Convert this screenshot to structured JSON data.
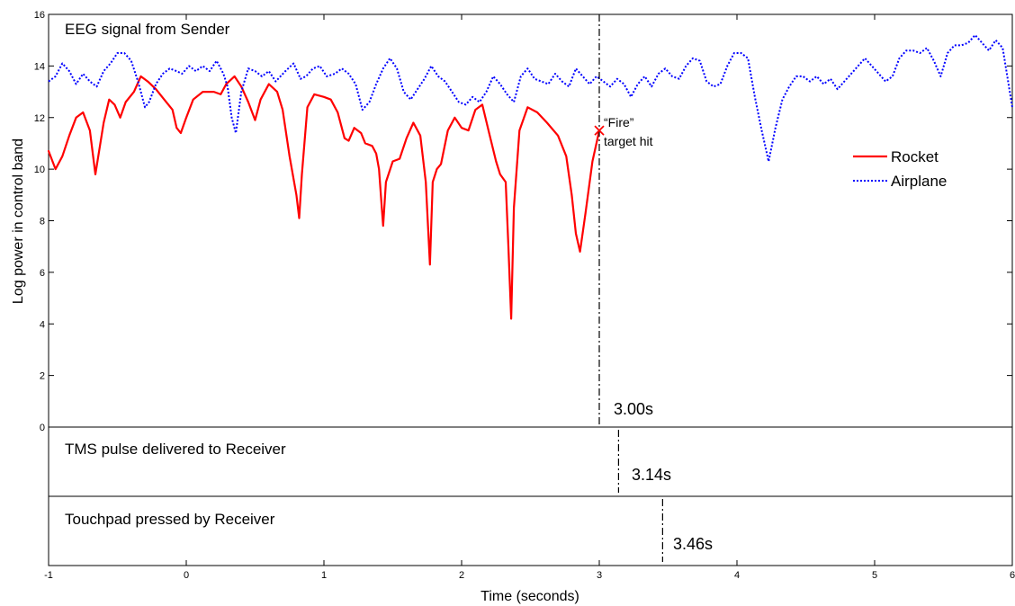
{
  "colors": {
    "rocket": "#ff0000",
    "airplane": "#0000ff",
    "axis": "#000000",
    "background": "#ffffff"
  },
  "chart_data": [
    {
      "type": "line",
      "panel": "eeg",
      "panel_label": "EEG signal from Sender",
      "ylabel": "Log power in control band",
      "xlabel": "Time (seconds)",
      "xlim": [
        -1,
        6
      ],
      "ylim": [
        0,
        16
      ],
      "yticks": [
        "0",
        "2",
        "4",
        "6",
        "8",
        "10",
        "12",
        "14",
        "16"
      ],
      "xticks": [
        "-1",
        "0",
        "1",
        "2",
        "3",
        "4",
        "5",
        "6"
      ],
      "legend_position": "right",
      "grid": false,
      "series": [
        {
          "name": "Rocket",
          "color": "#ff0000",
          "style": "solid",
          "points": [
            [
              -1.0,
              10.7
            ],
            [
              -0.95,
              10.0
            ],
            [
              -0.9,
              10.5
            ],
            [
              -0.85,
              11.3
            ],
            [
              -0.8,
              12.0
            ],
            [
              -0.75,
              12.2
            ],
            [
              -0.7,
              11.5
            ],
            [
              -0.66,
              9.8
            ],
            [
              -0.6,
              11.8
            ],
            [
              -0.56,
              12.7
            ],
            [
              -0.52,
              12.5
            ],
            [
              -0.48,
              12.0
            ],
            [
              -0.44,
              12.6
            ],
            [
              -0.38,
              13.0
            ],
            [
              -0.33,
              13.6
            ],
            [
              -0.28,
              13.4
            ],
            [
              -0.22,
              13.1
            ],
            [
              -0.16,
              12.7
            ],
            [
              -0.1,
              12.3
            ],
            [
              -0.07,
              11.6
            ],
            [
              -0.04,
              11.4
            ],
            [
              0.0,
              12.0
            ],
            [
              0.05,
              12.7
            ],
            [
              0.12,
              13.0
            ],
            [
              0.2,
              13.0
            ],
            [
              0.25,
              12.9
            ],
            [
              0.29,
              13.3
            ],
            [
              0.35,
              13.6
            ],
            [
              0.4,
              13.2
            ],
            [
              0.45,
              12.6
            ],
            [
              0.5,
              11.9
            ],
            [
              0.54,
              12.7
            ],
            [
              0.6,
              13.3
            ],
            [
              0.66,
              13.0
            ],
            [
              0.7,
              12.3
            ],
            [
              0.75,
              10.5
            ],
            [
              0.8,
              9.0
            ],
            [
              0.82,
              8.1
            ],
            [
              0.84,
              9.8
            ],
            [
              0.88,
              12.4
            ],
            [
              0.93,
              12.9
            ],
            [
              1.0,
              12.8
            ],
            [
              1.05,
              12.7
            ],
            [
              1.1,
              12.2
            ],
            [
              1.15,
              11.2
            ],
            [
              1.18,
              11.1
            ],
            [
              1.22,
              11.6
            ],
            [
              1.27,
              11.4
            ],
            [
              1.3,
              11.0
            ],
            [
              1.35,
              10.9
            ],
            [
              1.38,
              10.6
            ],
            [
              1.4,
              10.0
            ],
            [
              1.42,
              8.5
            ],
            [
              1.43,
              7.8
            ],
            [
              1.45,
              9.5
            ],
            [
              1.5,
              10.3
            ],
            [
              1.55,
              10.4
            ],
            [
              1.6,
              11.2
            ],
            [
              1.65,
              11.8
            ],
            [
              1.7,
              11.3
            ],
            [
              1.74,
              9.5
            ],
            [
              1.77,
              6.3
            ],
            [
              1.79,
              9.5
            ],
            [
              1.82,
              10.0
            ],
            [
              1.85,
              10.2
            ],
            [
              1.9,
              11.5
            ],
            [
              1.95,
              12.0
            ],
            [
              2.0,
              11.6
            ],
            [
              2.05,
              11.5
            ],
            [
              2.1,
              12.3
            ],
            [
              2.15,
              12.5
            ],
            [
              2.2,
              11.4
            ],
            [
              2.25,
              10.3
            ],
            [
              2.28,
              9.8
            ],
            [
              2.32,
              9.5
            ],
            [
              2.34,
              7.0
            ],
            [
              2.36,
              4.2
            ],
            [
              2.38,
              8.5
            ],
            [
              2.42,
              11.5
            ],
            [
              2.48,
              12.4
            ],
            [
              2.55,
              12.2
            ],
            [
              2.62,
              11.8
            ],
            [
              2.7,
              11.3
            ],
            [
              2.76,
              10.5
            ],
            [
              2.8,
              9.0
            ],
            [
              2.83,
              7.5
            ],
            [
              2.86,
              6.8
            ],
            [
              2.9,
              8.3
            ],
            [
              2.95,
              10.3
            ],
            [
              3.0,
              11.5
            ]
          ]
        },
        {
          "name": "Airplane",
          "color": "#0000ff",
          "style": "dotted",
          "points": [
            [
              -1.0,
              13.4
            ],
            [
              -0.95,
              13.6
            ],
            [
              -0.9,
              14.1
            ],
            [
              -0.85,
              13.8
            ],
            [
              -0.8,
              13.3
            ],
            [
              -0.75,
              13.7
            ],
            [
              -0.7,
              13.4
            ],
            [
              -0.65,
              13.2
            ],
            [
              -0.6,
              13.8
            ],
            [
              -0.55,
              14.1
            ],
            [
              -0.5,
              14.5
            ],
            [
              -0.45,
              14.5
            ],
            [
              -0.4,
              14.2
            ],
            [
              -0.35,
              13.4
            ],
            [
              -0.3,
              12.4
            ],
            [
              -0.27,
              12.6
            ],
            [
              -0.22,
              13.3
            ],
            [
              -0.17,
              13.7
            ],
            [
              -0.12,
              13.9
            ],
            [
              -0.07,
              13.8
            ],
            [
              -0.03,
              13.7
            ],
            [
              0.02,
              14.0
            ],
            [
              0.07,
              13.8
            ],
            [
              0.12,
              14.0
            ],
            [
              0.17,
              13.8
            ],
            [
              0.22,
              14.2
            ],
            [
              0.27,
              13.7
            ],
            [
              0.3,
              13.2
            ],
            [
              0.33,
              12.0
            ],
            [
              0.36,
              11.4
            ],
            [
              0.4,
              13.0
            ],
            [
              0.45,
              13.9
            ],
            [
              0.5,
              13.8
            ],
            [
              0.55,
              13.6
            ],
            [
              0.6,
              13.8
            ],
            [
              0.65,
              13.4
            ],
            [
              0.72,
              13.8
            ],
            [
              0.78,
              14.1
            ],
            [
              0.83,
              13.5
            ],
            [
              0.87,
              13.6
            ],
            [
              0.92,
              13.9
            ],
            [
              0.97,
              14.0
            ],
            [
              1.02,
              13.6
            ],
            [
              1.08,
              13.7
            ],
            [
              1.13,
              13.9
            ],
            [
              1.18,
              13.7
            ],
            [
              1.23,
              13.3
            ],
            [
              1.28,
              12.3
            ],
            [
              1.33,
              12.6
            ],
            [
              1.38,
              13.3
            ],
            [
              1.43,
              13.9
            ],
            [
              1.48,
              14.3
            ],
            [
              1.53,
              13.9
            ],
            [
              1.58,
              13.0
            ],
            [
              1.63,
              12.7
            ],
            [
              1.68,
              13.1
            ],
            [
              1.73,
              13.5
            ],
            [
              1.78,
              14.0
            ],
            [
              1.83,
              13.6
            ],
            [
              1.88,
              13.4
            ],
            [
              1.93,
              13.0
            ],
            [
              1.98,
              12.6
            ],
            [
              2.03,
              12.5
            ],
            [
              2.08,
              12.8
            ],
            [
              2.13,
              12.6
            ],
            [
              2.18,
              13.0
            ],
            [
              2.23,
              13.6
            ],
            [
              2.28,
              13.3
            ],
            [
              2.33,
              12.9
            ],
            [
              2.38,
              12.6
            ],
            [
              2.43,
              13.6
            ],
            [
              2.48,
              13.9
            ],
            [
              2.53,
              13.5
            ],
            [
              2.58,
              13.4
            ],
            [
              2.63,
              13.3
            ],
            [
              2.68,
              13.7
            ],
            [
              2.73,
              13.4
            ],
            [
              2.78,
              13.2
            ],
            [
              2.83,
              13.9
            ],
            [
              2.88,
              13.6
            ],
            [
              2.93,
              13.3
            ],
            [
              2.98,
              13.6
            ],
            [
              3.03,
              13.4
            ],
            [
              3.08,
              13.2
            ],
            [
              3.13,
              13.5
            ],
            [
              3.18,
              13.3
            ],
            [
              3.23,
              12.8
            ],
            [
              3.28,
              13.3
            ],
            [
              3.33,
              13.6
            ],
            [
              3.38,
              13.2
            ],
            [
              3.43,
              13.7
            ],
            [
              3.48,
              13.9
            ],
            [
              3.53,
              13.6
            ],
            [
              3.58,
              13.5
            ],
            [
              3.63,
              14.0
            ],
            [
              3.68,
              14.3
            ],
            [
              3.73,
              14.2
            ],
            [
              3.78,
              13.4
            ],
            [
              3.83,
              13.2
            ],
            [
              3.88,
              13.3
            ],
            [
              3.93,
              14.0
            ],
            [
              3.98,
              14.5
            ],
            [
              4.03,
              14.5
            ],
            [
              4.08,
              14.3
            ],
            [
              4.13,
              12.8
            ],
            [
              4.18,
              11.5
            ],
            [
              4.23,
              10.3
            ],
            [
              4.28,
              11.6
            ],
            [
              4.33,
              12.7
            ],
            [
              4.38,
              13.2
            ],
            [
              4.43,
              13.6
            ],
            [
              4.48,
              13.6
            ],
            [
              4.53,
              13.4
            ],
            [
              4.58,
              13.6
            ],
            [
              4.63,
              13.3
            ],
            [
              4.68,
              13.5
            ],
            [
              4.73,
              13.1
            ],
            [
              4.78,
              13.4
            ],
            [
              4.83,
              13.7
            ],
            [
              4.88,
              14.0
            ],
            [
              4.93,
              14.3
            ],
            [
              4.98,
              14.0
            ],
            [
              5.03,
              13.7
            ],
            [
              5.08,
              13.4
            ],
            [
              5.13,
              13.6
            ],
            [
              5.18,
              14.3
            ],
            [
              5.23,
              14.6
            ],
            [
              5.28,
              14.6
            ],
            [
              5.33,
              14.5
            ],
            [
              5.38,
              14.7
            ],
            [
              5.43,
              14.2
            ],
            [
              5.48,
              13.6
            ],
            [
              5.53,
              14.5
            ],
            [
              5.58,
              14.8
            ],
            [
              5.63,
              14.8
            ],
            [
              5.68,
              14.9
            ],
            [
              5.73,
              15.2
            ],
            [
              5.78,
              14.9
            ],
            [
              5.83,
              14.6
            ],
            [
              5.88,
              15.0
            ],
            [
              5.93,
              14.7
            ],
            [
              6.0,
              12.4
            ]
          ]
        }
      ],
      "annotations": [
        {
          "label_line1": "“Fire”",
          "label_line2": "target hit",
          "x": 3.0,
          "y": 11.5
        },
        {
          "label": "3.00s",
          "x": 3.0
        }
      ]
    },
    {
      "type": "event",
      "panel": "tms",
      "panel_label": "TMS pulse delivered to Receiver",
      "event_time": 3.14,
      "event_label": "3.14s"
    },
    {
      "type": "event",
      "panel": "touchpad",
      "panel_label": "Touchpad pressed by Receiver",
      "event_time": 3.46,
      "event_label": "3.46s"
    }
  ]
}
